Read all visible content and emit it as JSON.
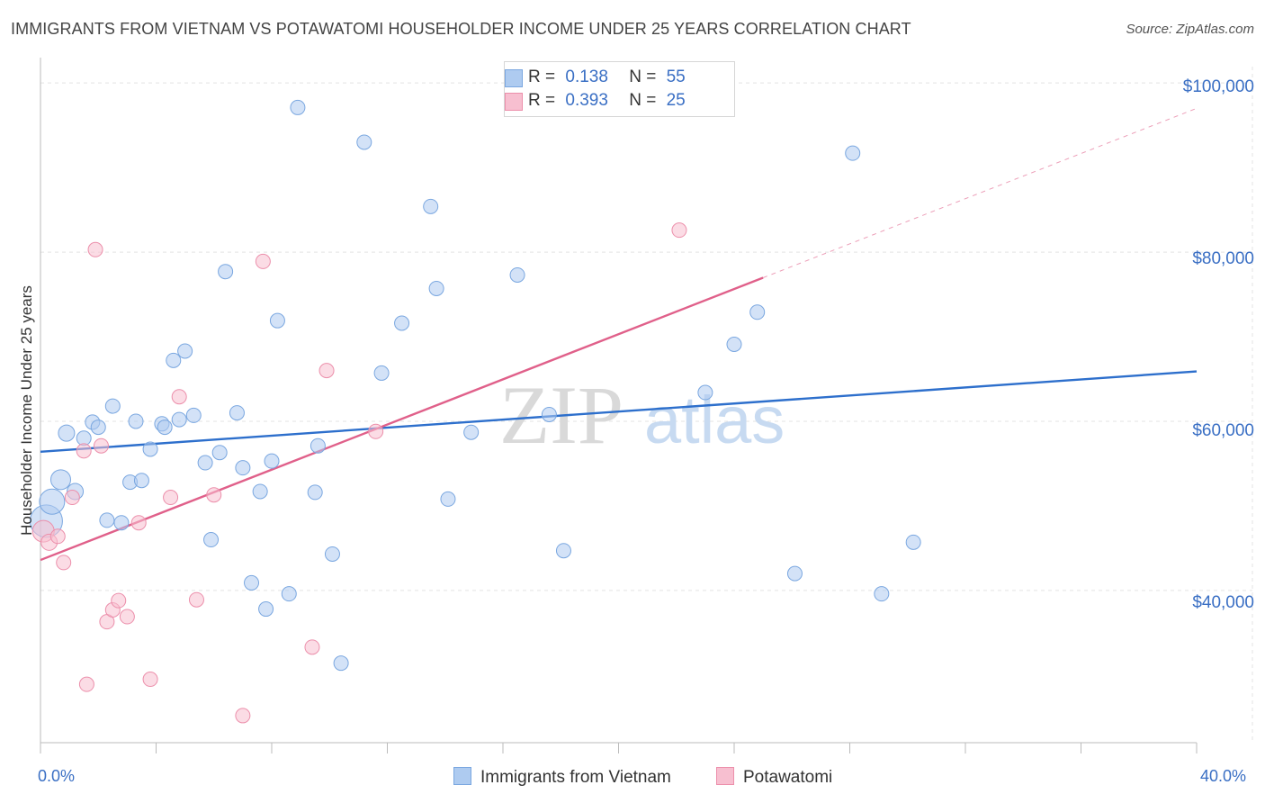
{
  "header": {
    "title": "IMMIGRANTS FROM VIETNAM VS POTAWATOMI HOUSEHOLDER INCOME UNDER 25 YEARS CORRELATION CHART",
    "source": "Source: ZipAtlas.com"
  },
  "watermark": "ZIPatlas",
  "legend": {
    "series1": {
      "r_label": "R =",
      "r_value": "0.138",
      "n_label": "N =",
      "n_value": "55"
    },
    "series2": {
      "r_label": "R =",
      "r_value": "0.393",
      "n_label": "N =",
      "n_value": "25"
    }
  },
  "bottom_legend": {
    "series1": "Immigrants from Vietnam",
    "series2": "Potawatomi"
  },
  "colors": {
    "blue_fill": "#aecbf0",
    "blue_edge": "#7aa7e0",
    "blue_line": "#2d6fcc",
    "pink_fill": "#f7bfd0",
    "pink_edge": "#ec8fab",
    "pink_line": "#e0608a",
    "grid": "#e3e3e3",
    "tick_text": "#3a6fc4"
  },
  "chart_data": {
    "type": "scatter",
    "title": "IMMIGRANTS FROM VIETNAM VS POTAWATOMI HOUSEHOLDER INCOME UNDER 25 YEARS CORRELATION CHART",
    "xlabel": "",
    "ylabel": "Householder Income Under 25 years",
    "xlim": [
      0,
      40
    ],
    "ylim": [
      22000,
      103000
    ],
    "x_tick_labels": [
      "0.0%",
      "40.0%"
    ],
    "y_ticks": [
      40000,
      60000,
      80000,
      100000
    ],
    "y_tick_labels": [
      "$40,000",
      "$60,000",
      "$80,000",
      "$100,000"
    ],
    "grid": true,
    "series": [
      {
        "name": "Immigrants from Vietnam",
        "color": "blue",
        "R": 0.138,
        "N": 55,
        "trend": {
          "x0": 0,
          "y0": 56400,
          "x1": 40,
          "y1": 65900,
          "dashed_from": null
        },
        "points": [
          [
            0.2,
            48200,
            18
          ],
          [
            0.4,
            50500,
            14
          ],
          [
            0.7,
            53100,
            11
          ],
          [
            1.2,
            51700,
            9
          ],
          [
            0.9,
            58600,
            9
          ],
          [
            1.5,
            58000,
            8
          ],
          [
            1.8,
            59900,
            8
          ],
          [
            2.0,
            59300,
            8
          ],
          [
            2.5,
            61800,
            8
          ],
          [
            2.3,
            48300,
            8
          ],
          [
            2.8,
            48000,
            8
          ],
          [
            3.1,
            52800,
            8
          ],
          [
            3.5,
            53000,
            8
          ],
          [
            3.3,
            60000,
            8
          ],
          [
            3.8,
            56700,
            8
          ],
          [
            4.2,
            59700,
            8
          ],
          [
            4.3,
            59300,
            8
          ],
          [
            4.8,
            60200,
            8
          ],
          [
            4.6,
            67200,
            8
          ],
          [
            5.0,
            68300,
            8
          ],
          [
            5.3,
            60700,
            8
          ],
          [
            5.7,
            55100,
            8
          ],
          [
            5.9,
            46000,
            8
          ],
          [
            6.2,
            56300,
            8
          ],
          [
            6.4,
            77700,
            8
          ],
          [
            6.8,
            61000,
            8
          ],
          [
            7.0,
            54500,
            8
          ],
          [
            7.3,
            40900,
            8
          ],
          [
            7.6,
            51700,
            8
          ],
          [
            7.8,
            37800,
            8
          ],
          [
            8.0,
            55300,
            8
          ],
          [
            8.2,
            71900,
            8
          ],
          [
            8.6,
            39600,
            8
          ],
          [
            8.9,
            97100,
            8
          ],
          [
            9.5,
            51600,
            8
          ],
          [
            9.6,
            57100,
            8
          ],
          [
            10.1,
            44300,
            8
          ],
          [
            10.4,
            31400,
            8
          ],
          [
            11.2,
            93000,
            8
          ],
          [
            11.8,
            65700,
            8
          ],
          [
            12.5,
            71600,
            8
          ],
          [
            13.5,
            85400,
            8
          ],
          [
            13.7,
            75700,
            8
          ],
          [
            14.1,
            50800,
            8
          ],
          [
            14.9,
            58700,
            8
          ],
          [
            16.5,
            77300,
            8
          ],
          [
            17.6,
            60800,
            8
          ],
          [
            18.1,
            44700,
            8
          ],
          [
            23.0,
            63400,
            8
          ],
          [
            24.0,
            69100,
            8
          ],
          [
            24.8,
            72900,
            8
          ],
          [
            26.1,
            42000,
            8
          ],
          [
            28.1,
            91700,
            8
          ],
          [
            29.1,
            39600,
            8
          ],
          [
            30.2,
            45700,
            8
          ]
        ]
      },
      {
        "name": "Potawatomi",
        "color": "pink",
        "R": 0.393,
        "N": 25,
        "trend": {
          "x0": 0,
          "y0": 43600,
          "x1": 40,
          "y1": 97000,
          "dashed_from": 25.0
        },
        "points": [
          [
            0.1,
            47000,
            12
          ],
          [
            0.3,
            45700,
            9
          ],
          [
            0.6,
            46400,
            8
          ],
          [
            0.8,
            43300,
            8
          ],
          [
            1.1,
            51000,
            8
          ],
          [
            1.5,
            56500,
            8
          ],
          [
            1.6,
            28900,
            8
          ],
          [
            1.9,
            80300,
            8
          ],
          [
            2.1,
            57100,
            8
          ],
          [
            2.3,
            36300,
            8
          ],
          [
            2.5,
            37700,
            8
          ],
          [
            2.7,
            38800,
            8
          ],
          [
            3.0,
            36900,
            8
          ],
          [
            3.4,
            48000,
            8
          ],
          [
            3.8,
            29500,
            8
          ],
          [
            4.5,
            51000,
            8
          ],
          [
            4.8,
            62900,
            8
          ],
          [
            5.4,
            38900,
            8
          ],
          [
            6.0,
            51300,
            8
          ],
          [
            7.0,
            25200,
            8
          ],
          [
            7.7,
            78900,
            8
          ],
          [
            9.4,
            33300,
            8
          ],
          [
            9.9,
            66000,
            8
          ],
          [
            11.6,
            58800,
            8
          ],
          [
            22.1,
            82600,
            8
          ]
        ]
      }
    ]
  }
}
